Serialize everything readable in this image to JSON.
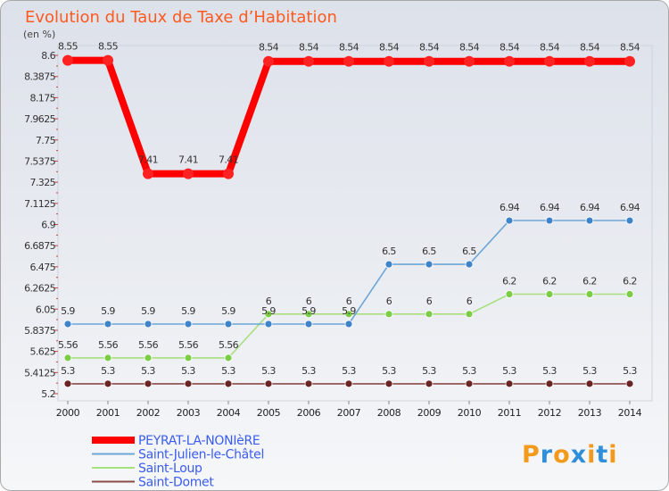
{
  "chart_data": {
    "type": "line",
    "title": "Evolution du Taux de Taxe d’Habitation",
    "ylabel": "(en %)",
    "xlabel": "",
    "x": [
      "2000",
      "2001",
      "2002",
      "2003",
      "2004",
      "2005",
      "2006",
      "2007",
      "2008",
      "2009",
      "2010",
      "2011",
      "2012",
      "2013",
      "2014"
    ],
    "ylim": [
      5.2,
      8.6
    ],
    "yticks": [
      "8.6",
      "8.3875",
      "8.175",
      "7.9625",
      "7.75",
      "7.5375",
      "7.325",
      "7.1125",
      "6.9",
      "6.6875",
      "6.475",
      "6.2625",
      "6.05",
      "5.8375",
      "5.625",
      "5.4125",
      "5.2"
    ],
    "legend_position": "bottom-left",
    "series": [
      {
        "name": "PEYRAT-LA-NONIèRE",
        "color": "#ff0000",
        "marker": "#ff2222",
        "values": [
          8.55,
          8.55,
          7.41,
          7.41,
          7.41,
          8.54,
          8.54,
          8.54,
          8.54,
          8.54,
          8.54,
          8.54,
          8.54,
          8.54,
          8.54
        ],
        "labels": [
          "8.55",
          "8.55",
          "7.41",
          "7.41",
          "7.41",
          "8.54",
          "8.54",
          "8.54",
          "8.54",
          "8.54",
          "8.54",
          "8.54",
          "8.54",
          "8.54",
          "8.54"
        ]
      },
      {
        "name": "Saint-Julien-le-Châtel",
        "color": "#6da6d6",
        "marker": "#3f83c9",
        "values": [
          5.9,
          5.9,
          5.9,
          5.9,
          5.9,
          5.9,
          5.9,
          5.9,
          6.5,
          6.5,
          6.5,
          6.94,
          6.94,
          6.94,
          6.94
        ],
        "labels": [
          "5.9",
          "5.9",
          "5.9",
          "5.9",
          "5.9",
          "5.9",
          "5.9",
          "5.9",
          "6.5",
          "6.5",
          "6.5",
          "6.94",
          "6.94",
          "6.94",
          "6.94"
        ]
      },
      {
        "name": "Saint-Loup",
        "color": "#a8e07f",
        "marker": "#7acd44",
        "values": [
          5.56,
          5.56,
          5.56,
          5.56,
          5.56,
          6,
          6,
          6,
          6,
          6,
          6,
          6.2,
          6.2,
          6.2,
          6.2
        ],
        "labels": [
          "5.56",
          "5.56",
          "5.56",
          "5.56",
          "5.56",
          "6",
          "6",
          "6",
          "6",
          "6",
          "6",
          "6.2",
          "6.2",
          "6.2",
          "6.2"
        ]
      },
      {
        "name": "Saint-Domet",
        "color": "#8a4a4a",
        "marker": "#6b2424",
        "values": [
          5.3,
          5.3,
          5.3,
          5.3,
          5.3,
          5.3,
          5.3,
          5.3,
          5.3,
          5.3,
          5.3,
          5.3,
          5.3,
          5.3,
          5.3
        ],
        "labels": [
          "5.3",
          "5.3",
          "5.3",
          "5.3",
          "5.3",
          "5.3",
          "5.3",
          "5.3",
          "5.3",
          "5.3",
          "5.3",
          "5.3",
          "5.3",
          "5.3",
          "5.3"
        ]
      }
    ]
  },
  "brand": {
    "text": "Proxiti",
    "letters": [
      "P",
      "r",
      "o",
      "x",
      "i",
      "t",
      "i"
    ],
    "colors": [
      "#f39a1c",
      "#2f8fd8",
      "#f39a1c",
      "#2f8fd8",
      "#f39a1c",
      "#2f8fd8",
      "#f39a1c"
    ]
  }
}
